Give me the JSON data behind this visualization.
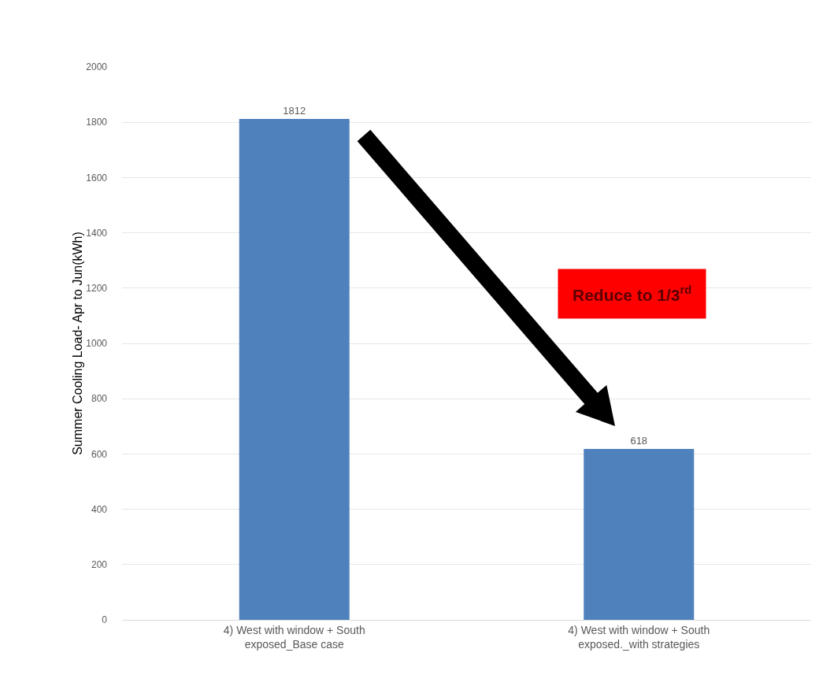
{
  "chart_data": {
    "type": "bar",
    "categories": [
      "4) West with window + South exposed_Base case",
      "4) West with window + South exposed._with strategies"
    ],
    "values": [
      1812,
      618
    ],
    "color": "#4f81bd",
    "ylabel": "Summer Cooling Load- Apr to Jun(kWh)",
    "ylim": [
      0,
      2000
    ],
    "yticks": [
      0,
      200,
      400,
      600,
      800,
      1000,
      1200,
      1400,
      1600,
      1800,
      2000
    ],
    "grid": "y",
    "data_labels": true,
    "legend": false,
    "annotations": [
      "Reduce to 1/3$^{rd}$"
    ]
  }
}
